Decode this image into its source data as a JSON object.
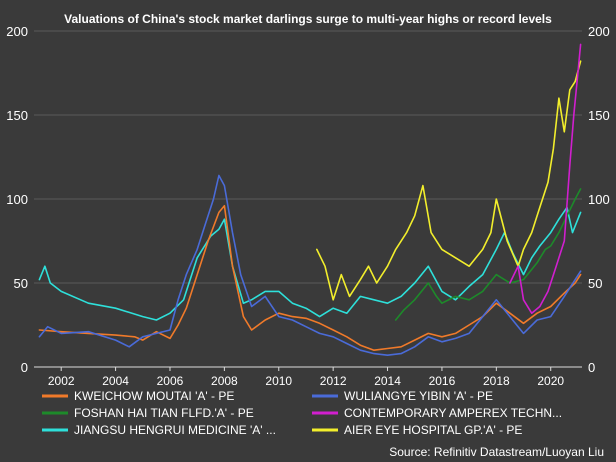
{
  "chart_data": {
    "type": "line",
    "title": "Valuations of China's stock market darlings surge to multi-year highs or record levels",
    "source": "Source: Refinitiv Datastream/Luoyan Liu",
    "xlabel": "",
    "ylabel": "",
    "xlim": [
      2001.0,
      2021.15
    ],
    "ylim": [
      0,
      200
    ],
    "xticks": [
      "2002",
      "2004",
      "2006",
      "2008",
      "2010",
      "2012",
      "2014",
      "2016",
      "2018",
      "2020"
    ],
    "yticks_left": [
      "0",
      "50",
      "100",
      "150",
      "200"
    ],
    "yticks_right": [
      "0",
      "50",
      "100",
      "150",
      "200"
    ],
    "grid": "horizontal",
    "legend_position": "bottom",
    "legend": [
      "KWEICHOW MOUTAI 'A' - PE",
      "WULIANGYE YIBIN 'A' - PE",
      "FOSHAN HAI TIAN FLFD.'A' - PE",
      "CONTEMPORARY AMPEREX TECHN...",
      "JIANGSU HENGRUI MEDICINE 'A' ...",
      "AIER EYE HOSPITAL GP.'A' - PE"
    ],
    "series": [
      {
        "name": "KWEICHOW MOUTAI 'A' - PE",
        "color": "#f07a2a",
        "points": [
          [
            2001.2,
            22
          ],
          [
            2002,
            21
          ],
          [
            2003,
            20
          ],
          [
            2004,
            19
          ],
          [
            2004.7,
            18
          ],
          [
            2005,
            16
          ],
          [
            2005.5,
            21
          ],
          [
            2006,
            17
          ],
          [
            2006.3,
            25
          ],
          [
            2006.6,
            35
          ],
          [
            2007,
            55
          ],
          [
            2007.4,
            75
          ],
          [
            2007.8,
            92
          ],
          [
            2008,
            96
          ],
          [
            2008.3,
            60
          ],
          [
            2008.7,
            30
          ],
          [
            2009,
            22
          ],
          [
            2009.5,
            28
          ],
          [
            2010,
            32
          ],
          [
            2010.5,
            30
          ],
          [
            2011,
            29
          ],
          [
            2011.5,
            26
          ],
          [
            2012,
            22
          ],
          [
            2012.5,
            18
          ],
          [
            2013,
            13
          ],
          [
            2013.5,
            10
          ],
          [
            2014,
            11
          ],
          [
            2014.5,
            12
          ],
          [
            2015,
            16
          ],
          [
            2015.5,
            20
          ],
          [
            2016,
            18
          ],
          [
            2016.5,
            20
          ],
          [
            2017,
            25
          ],
          [
            2017.5,
            30
          ],
          [
            2018,
            38
          ],
          [
            2018.5,
            32
          ],
          [
            2019,
            26
          ],
          [
            2019.5,
            32
          ],
          [
            2020,
            36
          ],
          [
            2020.5,
            44
          ],
          [
            2020.9,
            50
          ],
          [
            2021.1,
            55
          ]
        ]
      },
      {
        "name": "WULIANGYE YIBIN 'A' - PE",
        "color": "#4a6bd8",
        "points": [
          [
            2001.2,
            18
          ],
          [
            2001.5,
            24
          ],
          [
            2002,
            20
          ],
          [
            2003,
            21
          ],
          [
            2004,
            16
          ],
          [
            2004.5,
            12
          ],
          [
            2005,
            18
          ],
          [
            2005.5,
            20
          ],
          [
            2006,
            22
          ],
          [
            2006.3,
            40
          ],
          [
            2006.6,
            55
          ],
          [
            2007,
            70
          ],
          [
            2007.3,
            85
          ],
          [
            2007.6,
            100
          ],
          [
            2007.8,
            114
          ],
          [
            2008,
            108
          ],
          [
            2008.3,
            80
          ],
          [
            2008.6,
            55
          ],
          [
            2009,
            36
          ],
          [
            2009.5,
            42
          ],
          [
            2010,
            30
          ],
          [
            2010.5,
            28
          ],
          [
            2011,
            24
          ],
          [
            2011.5,
            20
          ],
          [
            2012,
            18
          ],
          [
            2012.5,
            14
          ],
          [
            2013,
            10
          ],
          [
            2013.5,
            8
          ],
          [
            2014,
            7
          ],
          [
            2014.5,
            8
          ],
          [
            2015,
            12
          ],
          [
            2015.5,
            18
          ],
          [
            2016,
            15
          ],
          [
            2016.5,
            17
          ],
          [
            2017,
            20
          ],
          [
            2017.5,
            30
          ],
          [
            2018,
            40
          ],
          [
            2018.5,
            30
          ],
          [
            2019,
            20
          ],
          [
            2019.5,
            28
          ],
          [
            2020,
            30
          ],
          [
            2020.5,
            42
          ],
          [
            2020.9,
            52
          ],
          [
            2021.1,
            57
          ]
        ]
      },
      {
        "name": "FOSHAN HAI TIAN FLFD.'A' - PE",
        "color": "#1d8a2a",
        "points": [
          [
            2014.3,
            28
          ],
          [
            2014.6,
            34
          ],
          [
            2015,
            40
          ],
          [
            2015.5,
            50
          ],
          [
            2015.8,
            42
          ],
          [
            2016,
            38
          ],
          [
            2016.5,
            42
          ],
          [
            2017,
            40
          ],
          [
            2017.5,
            45
          ],
          [
            2018,
            55
          ],
          [
            2018.5,
            50
          ],
          [
            2019,
            52
          ],
          [
            2019.5,
            62
          ],
          [
            2019.8,
            70
          ],
          [
            2020,
            72
          ],
          [
            2020.3,
            80
          ],
          [
            2020.6,
            90
          ],
          [
            2020.9,
            100
          ],
          [
            2021.1,
            106
          ]
        ]
      },
      {
        "name": "CONTEMPORARY AMPEREX TECHN...",
        "color": "#d11fcf",
        "points": [
          [
            2018.5,
            50
          ],
          [
            2018.8,
            60
          ],
          [
            2019,
            40
          ],
          [
            2019.3,
            32
          ],
          [
            2019.6,
            36
          ],
          [
            2019.9,
            45
          ],
          [
            2020.2,
            60
          ],
          [
            2020.5,
            75
          ],
          [
            2020.7,
            120
          ],
          [
            2020.85,
            150
          ],
          [
            2021,
            175
          ],
          [
            2021.1,
            192
          ]
        ]
      },
      {
        "name": "JIANGSU HENGRUI MEDICINE 'A' ...",
        "color": "#2ee0da",
        "points": [
          [
            2001.2,
            52
          ],
          [
            2001.4,
            60
          ],
          [
            2001.6,
            50
          ],
          [
            2002,
            45
          ],
          [
            2003,
            38
          ],
          [
            2004,
            35
          ],
          [
            2005,
            30
          ],
          [
            2005.5,
            28
          ],
          [
            2006,
            32
          ],
          [
            2006.5,
            40
          ],
          [
            2007,
            65
          ],
          [
            2007.5,
            78
          ],
          [
            2007.8,
            82
          ],
          [
            2008,
            88
          ],
          [
            2008.3,
            60
          ],
          [
            2008.7,
            38
          ],
          [
            2009,
            40
          ],
          [
            2009.5,
            45
          ],
          [
            2010,
            45
          ],
          [
            2010.5,
            38
          ],
          [
            2011,
            35
          ],
          [
            2011.5,
            30
          ],
          [
            2012,
            35
          ],
          [
            2012.5,
            32
          ],
          [
            2013,
            42
          ],
          [
            2013.5,
            40
          ],
          [
            2014,
            38
          ],
          [
            2014.5,
            42
          ],
          [
            2015,
            50
          ],
          [
            2015.5,
            60
          ],
          [
            2016,
            45
          ],
          [
            2016.5,
            40
          ],
          [
            2017,
            48
          ],
          [
            2017.5,
            55
          ],
          [
            2018,
            70
          ],
          [
            2018.3,
            80
          ],
          [
            2018.6,
            68
          ],
          [
            2019,
            55
          ],
          [
            2019.3,
            65
          ],
          [
            2019.6,
            72
          ],
          [
            2020,
            80
          ],
          [
            2020.3,
            88
          ],
          [
            2020.6,
            95
          ],
          [
            2020.8,
            80
          ],
          [
            2021.1,
            92
          ]
        ]
      },
      {
        "name": "AIER EYE HOSPITAL GP.'A' - PE",
        "color": "#f2ee2c",
        "points": [
          [
            2011.4,
            70
          ],
          [
            2011.7,
            60
          ],
          [
            2012,
            40
          ],
          [
            2012.3,
            55
          ],
          [
            2012.6,
            42
          ],
          [
            2013,
            52
          ],
          [
            2013.3,
            60
          ],
          [
            2013.6,
            50
          ],
          [
            2014,
            60
          ],
          [
            2014.3,
            70
          ],
          [
            2014.7,
            80
          ],
          [
            2015,
            90
          ],
          [
            2015.3,
            108
          ],
          [
            2015.6,
            80
          ],
          [
            2016,
            70
          ],
          [
            2016.5,
            65
          ],
          [
            2017,
            60
          ],
          [
            2017.5,
            70
          ],
          [
            2017.8,
            80
          ],
          [
            2018,
            100
          ],
          [
            2018.4,
            75
          ],
          [
            2018.8,
            60
          ],
          [
            2019,
            70
          ],
          [
            2019.3,
            80
          ],
          [
            2019.6,
            95
          ],
          [
            2019.9,
            110
          ],
          [
            2020.1,
            130
          ],
          [
            2020.3,
            160
          ],
          [
            2020.5,
            140
          ],
          [
            2020.7,
            165
          ],
          [
            2020.9,
            170
          ],
          [
            2021.1,
            182
          ]
        ]
      }
    ]
  }
}
